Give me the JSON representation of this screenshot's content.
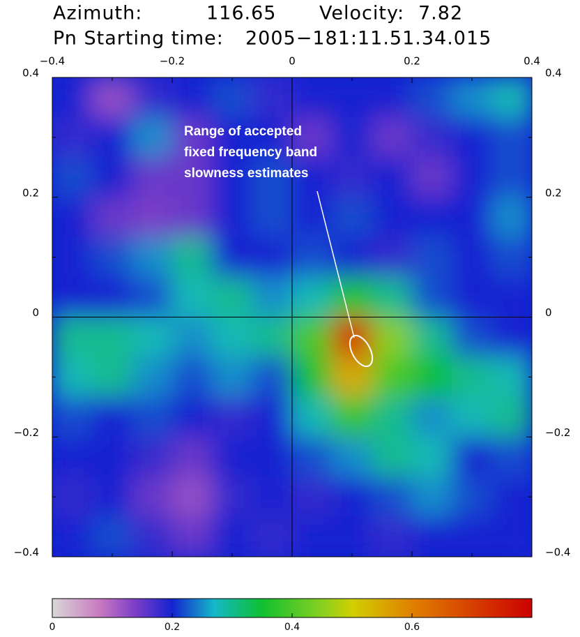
{
  "chart_data": {
    "type": "heatmap",
    "title_lines": [
      [
        "Azimuth:",
        116.65,
        "Velocity:",
        7.82
      ],
      [
        "Pn Starting time:",
        "2005−181:11.51.34.015"
      ]
    ],
    "annotation": [
      "Range of accepted",
      "fixed frequency band",
      "slowness estimates"
    ],
    "xlim": [
      -0.4,
      0.4
    ],
    "ylim": [
      -0.4,
      0.4
    ],
    "xticks": [
      {
        "value": -0.4,
        "label": "−0.4"
      },
      {
        "value": -0.2,
        "label": "−0.2"
      },
      0,
      0.2,
      0.4
    ],
    "yticks": [
      {
        "value": -0.4,
        "label": "−0.4"
      },
      {
        "value": -0.2,
        "label": "−0.2"
      },
      0,
      0.2,
      0.4
    ],
    "minor_ticks": [
      -0.3,
      -0.1,
      0.1,
      0.3
    ],
    "z": [
      [
        0.2,
        0.12,
        0.18,
        0.2,
        0.22,
        0.18,
        0.2,
        0.2,
        0.2,
        0.22,
        0.25,
        0.28
      ],
      [
        0.18,
        0.2,
        0.25,
        0.15,
        0.2,
        0.2,
        0.15,
        0.2,
        0.15,
        0.18,
        0.2,
        0.22
      ],
      [
        0.22,
        0.2,
        0.15,
        0.15,
        0.2,
        0.22,
        0.2,
        0.18,
        0.2,
        0.15,
        0.2,
        0.22
      ],
      [
        0.2,
        0.15,
        0.14,
        0.15,
        0.2,
        0.22,
        0.2,
        0.22,
        0.2,
        0.2,
        0.2,
        0.25
      ],
      [
        0.2,
        0.22,
        0.25,
        0.3,
        0.2,
        0.2,
        0.22,
        0.2,
        0.18,
        0.22,
        0.2,
        0.22
      ],
      [
        0.2,
        0.2,
        0.22,
        0.28,
        0.3,
        0.25,
        0.28,
        0.36,
        0.3,
        0.22,
        0.2,
        0.2
      ],
      [
        0.3,
        0.3,
        0.28,
        0.25,
        0.28,
        0.3,
        0.4,
        0.72,
        0.45,
        0.3,
        0.22,
        0.2
      ],
      [
        0.28,
        0.3,
        0.25,
        0.22,
        0.25,
        0.22,
        0.35,
        0.55,
        0.4,
        0.35,
        0.3,
        0.28
      ],
      [
        0.22,
        0.2,
        0.22,
        0.2,
        0.18,
        0.2,
        0.28,
        0.38,
        0.3,
        0.25,
        0.28,
        0.3
      ],
      [
        0.2,
        0.2,
        0.18,
        0.15,
        0.2,
        0.2,
        0.22,
        0.25,
        0.3,
        0.28,
        0.2,
        0.22
      ],
      [
        0.18,
        0.2,
        0.15,
        0.12,
        0.18,
        0.2,
        0.18,
        0.2,
        0.22,
        0.25,
        0.22,
        0.2
      ],
      [
        0.2,
        0.22,
        0.18,
        0.15,
        0.2,
        0.18,
        0.2,
        0.2,
        0.18,
        0.2,
        0.2,
        0.2
      ]
    ],
    "zlim": [
      0,
      0.8
    ],
    "zticks": [
      0,
      0.2,
      0.4,
      0.6
    ],
    "colorscale": [
      [
        0,
        "#d8d8d8"
      ],
      [
        0.08,
        "#c878c0"
      ],
      [
        0.14,
        "#7a3cc8"
      ],
      [
        0.2,
        "#1424d0"
      ],
      [
        0.27,
        "#14b8c8"
      ],
      [
        0.35,
        "#10c030"
      ],
      [
        0.45,
        "#88d020"
      ],
      [
        0.5,
        "#d0d000"
      ],
      [
        0.6,
        "#e08000"
      ],
      [
        0.8,
        "#cc0000"
      ]
    ]
  }
}
